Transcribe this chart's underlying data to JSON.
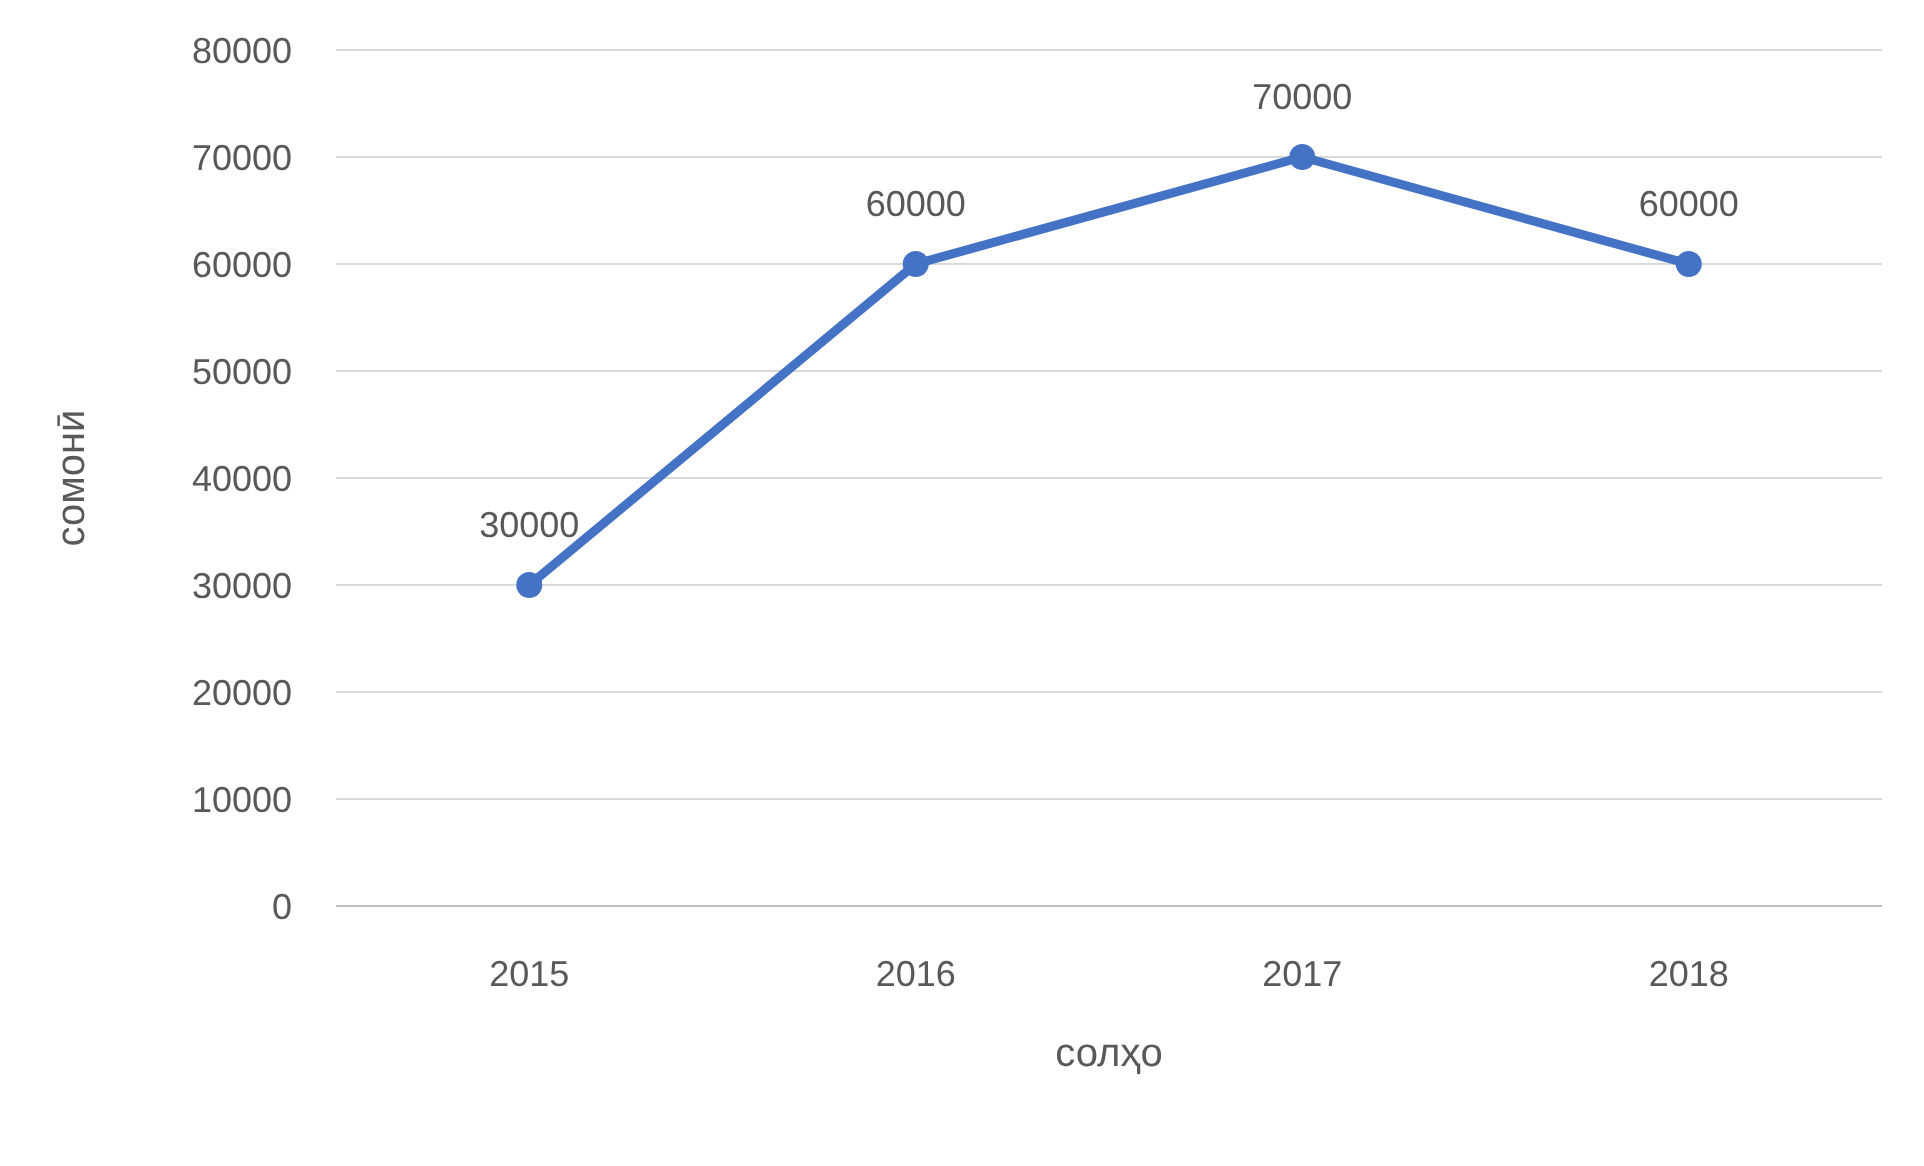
{
  "chart_data": {
    "type": "line",
    "xlabel": "солҳо",
    "ylabel": "сомонӣ",
    "categories": [
      "2015",
      "2016",
      "2017",
      "2018"
    ],
    "series": [
      {
        "color": "#4472c4",
        "values": [
          30000,
          60000,
          70000,
          60000
        ]
      }
    ],
    "ylim": [
      0,
      80000
    ],
    "yticks": [
      0,
      10000,
      20000,
      30000,
      40000,
      50000,
      60000,
      70000,
      80000
    ],
    "grid": "y",
    "marker": "circle",
    "line_style": "solid",
    "data_labels": true
  }
}
